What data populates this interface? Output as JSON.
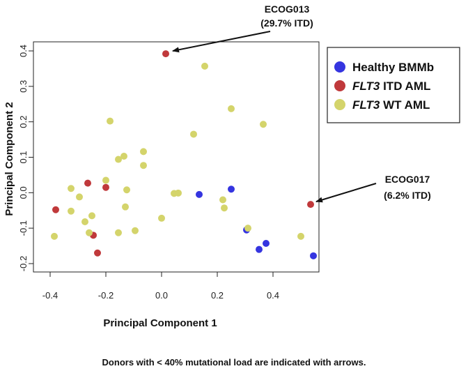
{
  "chart_data": {
    "type": "scatter",
    "xlabel": "Principal Component 1",
    "ylabel": "Principal Component 2",
    "xlim": [
      -0.4,
      0.56
    ],
    "ylim": [
      -0.2,
      0.42
    ],
    "xticks": [
      "-0.4",
      "-0.2",
      "0.0",
      "0.2",
      "0.4"
    ],
    "yticks": [
      "-0.2",
      "-0.1",
      "0.0",
      "0.1",
      "0.2",
      "0.3",
      "0.4"
    ],
    "legend_position": "top-right",
    "series": [
      {
        "name": "Healthy BMMb",
        "color": "#3535e0",
        "points": [
          [
            0.135,
            -0.005
          ],
          [
            0.25,
            0.01
          ],
          [
            0.305,
            -0.105
          ],
          [
            0.35,
            -0.16
          ],
          [
            0.375,
            -0.143
          ],
          [
            0.545,
            -0.178
          ]
        ]
      },
      {
        "name": "FLT3 ITD AML",
        "color": "#c0393b",
        "points": [
          [
            0.015,
            0.392
          ],
          [
            -0.38,
            -0.048
          ],
          [
            -0.265,
            0.027
          ],
          [
            -0.2,
            0.015
          ],
          [
            -0.245,
            -0.12
          ],
          [
            -0.23,
            -0.17
          ],
          [
            0.535,
            -0.033
          ]
        ]
      },
      {
        "name": "FLT3 WT AML",
        "color": "#d4d46b",
        "points": [
          [
            0.155,
            0.357
          ],
          [
            0.25,
            0.237
          ],
          [
            0.365,
            0.193
          ],
          [
            0.115,
            0.165
          ],
          [
            -0.185,
            0.202
          ],
          [
            -0.065,
            0.116
          ],
          [
            -0.135,
            0.103
          ],
          [
            -0.155,
            0.094
          ],
          [
            -0.065,
            0.077
          ],
          [
            -0.2,
            0.035
          ],
          [
            -0.325,
            0.012
          ],
          [
            -0.125,
            0.008
          ],
          [
            0.045,
            -0.002
          ],
          [
            0.06,
            -0.001
          ],
          [
            -0.295,
            -0.012
          ],
          [
            0.22,
            -0.02
          ],
          [
            0.225,
            -0.043
          ],
          [
            -0.13,
            -0.04
          ],
          [
            -0.325,
            -0.052
          ],
          [
            -0.25,
            -0.065
          ],
          [
            0.0,
            -0.072
          ],
          [
            -0.275,
            -0.082
          ],
          [
            0.31,
            -0.1
          ],
          [
            -0.095,
            -0.107
          ],
          [
            -0.26,
            -0.113
          ],
          [
            -0.155,
            -0.113
          ],
          [
            -0.385,
            -0.123
          ],
          [
            0.5,
            -0.123
          ]
        ]
      }
    ],
    "legend": [
      {
        "italic": "",
        "text": "Healthy BMMb"
      },
      {
        "italic": "FLT3",
        "text": " ITD AML"
      },
      {
        "italic": "FLT3",
        "text": " WT AML"
      }
    ],
    "annotations": [
      {
        "line1": "ECOG013",
        "line2": "(29.7% ITD)",
        "x": 0.015,
        "y": 0.392
      },
      {
        "line1": "ECOG017",
        "line2": "(6.2% ITD)",
        "x": 0.535,
        "y": -0.033
      }
    ]
  },
  "footnote": "Donors with < 40% mutational load are indicated with arrows."
}
